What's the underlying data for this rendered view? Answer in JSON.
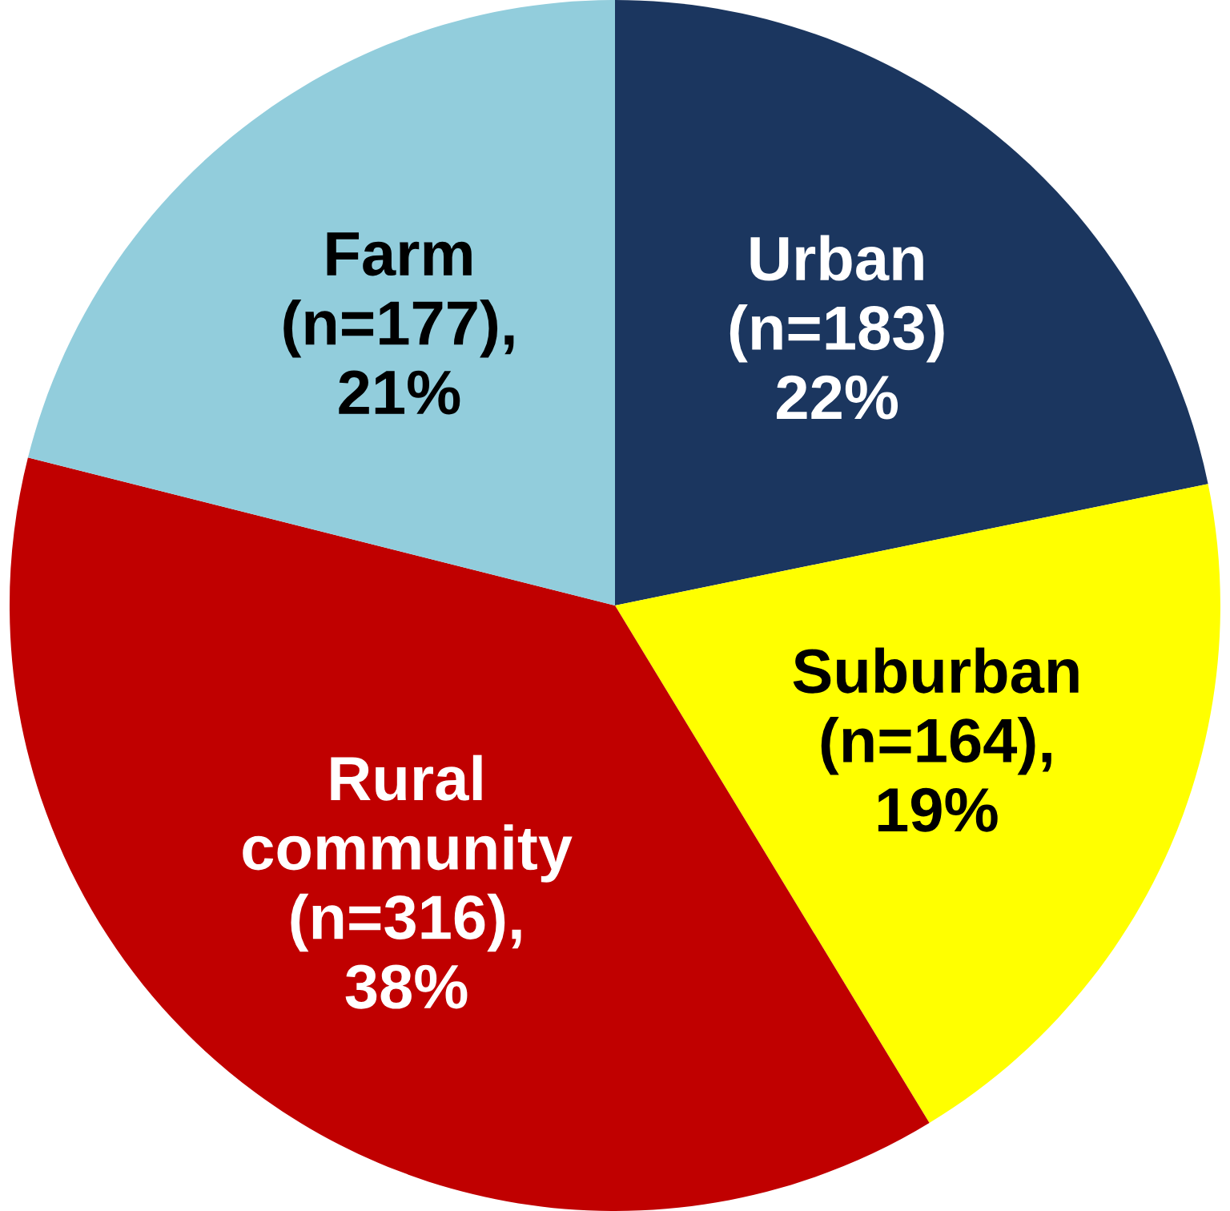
{
  "chart_data": {
    "type": "pie",
    "categories": [
      "Urban",
      "Suburban",
      "Rural\ncommunity",
      "Farm"
    ],
    "values": [
      183,
      164,
      316,
      177
    ],
    "value_labels": [
      "(n=183)\n22%",
      "(n=164),\n19%",
      "(n=316),\n38%",
      "(n=177),\n21%"
    ],
    "colors": [
      "#1b365f",
      "#ffff00",
      "#c00000",
      "#92cddc"
    ]
  }
}
